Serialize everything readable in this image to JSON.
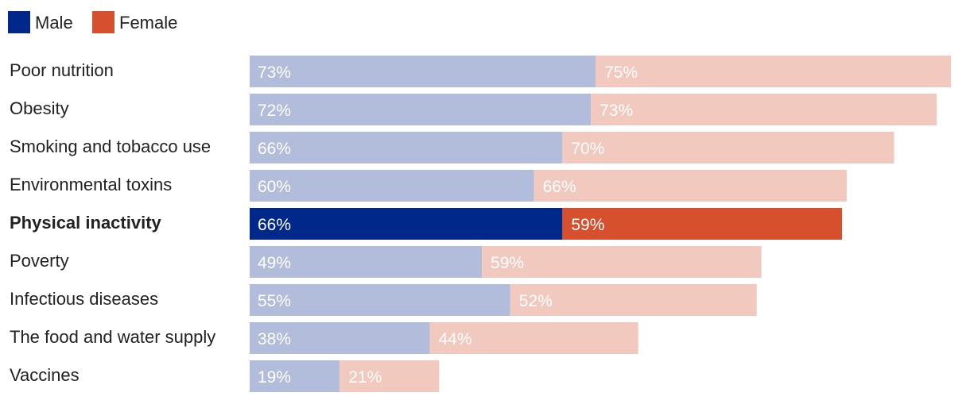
{
  "chart_data": {
    "type": "bar",
    "orientation": "horizontal",
    "stacked": true,
    "legend_position": "top-left",
    "series": [
      {
        "name": "Male",
        "color": "#00288b",
        "muted_color": "#b1bddb",
        "values": [
          73,
          72,
          66,
          60,
          66,
          49,
          55,
          38,
          19
        ]
      },
      {
        "name": "Female",
        "color": "#d6502e",
        "muted_color": "#f2c9bf",
        "values": [
          75,
          73,
          70,
          66,
          59,
          59,
          52,
          44,
          21
        ]
      }
    ],
    "categories": [
      "Poor nutrition",
      "Obesity",
      "Smoking and tobacco use",
      "Environmental toxins",
      "Physical inactivity",
      "Poverty",
      "Infectious diseases",
      "The food and water supply",
      "Vaccines"
    ],
    "value_labels": {
      "male": [
        "73%",
        "72%",
        "66%",
        "60%",
        "66%",
        "49%",
        "55%",
        "38%",
        "19%"
      ],
      "female": [
        "75%",
        "73%",
        "70%",
        "66%",
        "59%",
        "59%",
        "52%",
        "44%",
        "21%"
      ]
    },
    "highlighted_category": "Physical inactivity",
    "xlim": [
      0,
      150
    ]
  }
}
